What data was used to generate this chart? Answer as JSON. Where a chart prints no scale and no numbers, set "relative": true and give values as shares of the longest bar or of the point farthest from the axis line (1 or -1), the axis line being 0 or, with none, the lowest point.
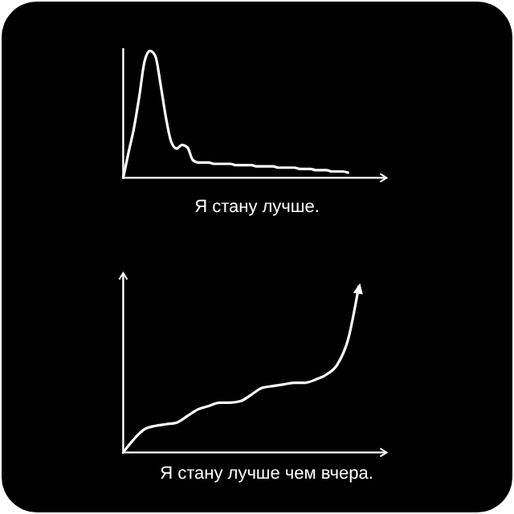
{
  "chart_data": [
    {
      "type": "line",
      "relative": true,
      "xlabel": "Я стану лучше.",
      "categories": [
        null,
        null,
        null,
        null,
        null,
        null,
        null,
        null,
        null,
        null,
        null,
        null,
        null,
        null,
        null,
        null,
        null,
        null,
        null,
        null,
        null,
        null,
        null,
        null,
        null,
        null,
        null,
        null,
        null,
        null,
        null,
        null,
        null,
        null,
        null,
        null,
        null,
        null,
        null,
        null,
        null,
        null,
        null,
        null,
        null,
        null,
        null,
        null,
        null
      ],
      "series": [
        {
          "color": "#ffffff",
          "values": [
            0,
            0.2,
            0.39,
            0.64,
            0.92,
            1,
            0.96,
            0.73,
            0.47,
            0.28,
            0.23,
            0.26,
            0.24,
            0.14,
            0.12,
            0.12,
            0.12,
            0.11,
            0.11,
            0.11,
            0.11,
            0.1,
            0.1,
            0.1,
            0.1,
            0.09,
            0.09,
            0.09,
            0.09,
            0.08,
            0.08,
            0.08,
            0.08,
            0.07,
            0.07,
            0.07,
            0.06,
            0.06,
            0.06,
            0.05,
            0.05,
            0.05,
            0.04,
            null,
            null,
            null,
            null,
            null,
            null
          ]
        }
      ]
    },
    {
      "type": "line",
      "relative": true,
      "xlabel": "Я стану лучше чем вчера.",
      "categories": [
        null,
        null,
        null,
        null,
        null,
        null,
        null,
        null,
        null,
        null,
        null,
        null,
        null,
        null,
        null,
        null,
        null,
        null,
        null,
        null,
        null,
        null,
        null,
        null,
        null
      ],
      "series": [
        {
          "color": "#ffffff",
          "values": [
            0,
            0.08,
            0.14,
            0.16,
            0.17,
            0.18,
            0.22,
            0.26,
            0.28,
            0.3,
            0.3,
            0.31,
            0.35,
            0.39,
            0.4,
            0.41,
            0.42,
            0.42,
            0.44,
            0.47,
            0.53,
            0.68,
            1,
            null,
            null
          ]
        }
      ]
    }
  ]
}
